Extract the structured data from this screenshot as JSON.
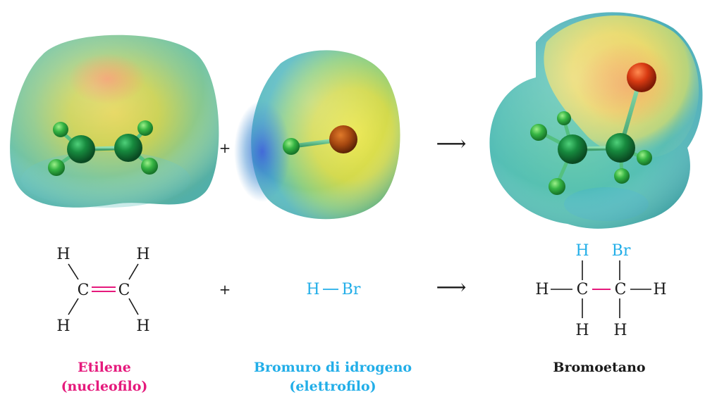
{
  "operators": {
    "plus_top": "+",
    "plus_bottom": "+",
    "arrow_top": "⟶",
    "arrow_bottom": "⟶"
  },
  "atoms": {
    "H": "H",
    "C": "C",
    "Br": "Br"
  },
  "labels": {
    "ethylene_name": "Etilene",
    "ethylene_role": "(nucleofilo)",
    "hbr_name": "Bromuro di idrogeno",
    "hbr_role": "(elettrofilo)",
    "product_name": "Bromoetano"
  },
  "colors": {
    "nucleophile": "#e5197c",
    "electrophile": "#22aee8",
    "text": "#1a1a1a",
    "carbon": "#0f6b2e",
    "hydrogen": "#2fae3c",
    "bromine": "#c03010"
  },
  "icons": {
    "ethylene_map": "electrostatic-potential-map",
    "hbr_map": "electrostatic-potential-map",
    "bromoethane_map": "electrostatic-potential-map"
  }
}
